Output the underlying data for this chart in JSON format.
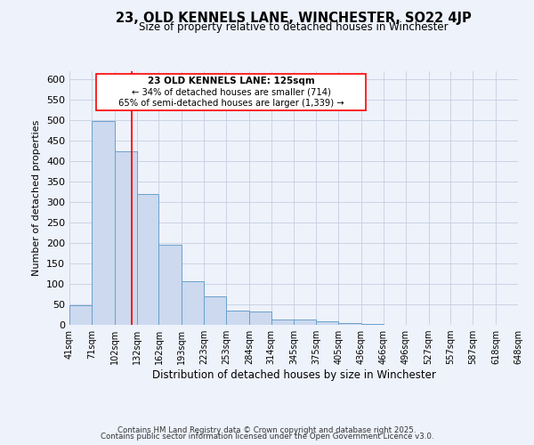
{
  "title": "23, OLD KENNELS LANE, WINCHESTER, SO22 4JP",
  "subtitle": "Size of property relative to detached houses in Winchester",
  "xlabel": "Distribution of detached houses by size in Winchester",
  "ylabel": "Number of detached properties",
  "footer_line1": "Contains HM Land Registry data © Crown copyright and database right 2025.",
  "footer_line2": "Contains public sector information licensed under the Open Government Licence v3.0.",
  "annotation_line1": "23 OLD KENNELS LANE: 125sqm",
  "annotation_line2": "← 34% of detached houses are smaller (714)",
  "annotation_line3": "65% of semi-detached houses are larger (1,339) →",
  "bar_color": "#ccd9ef",
  "bar_edge_color": "#6aa0cc",
  "red_line_x": 125,
  "ylim": [
    0,
    620
  ],
  "yticks": [
    0,
    50,
    100,
    150,
    200,
    250,
    300,
    350,
    400,
    450,
    500,
    550,
    600
  ],
  "bin_edges": [
    41,
    71,
    102,
    132,
    162,
    193,
    223,
    253,
    284,
    314,
    345,
    375,
    405,
    436,
    466,
    496,
    527,
    557,
    587,
    618,
    648
  ],
  "bin_counts": [
    47,
    499,
    424,
    320,
    196,
    106,
    70,
    35,
    32,
    13,
    14,
    9,
    4,
    2,
    1,
    1,
    1,
    0,
    0,
    0
  ],
  "background_color": "#eef2fb"
}
